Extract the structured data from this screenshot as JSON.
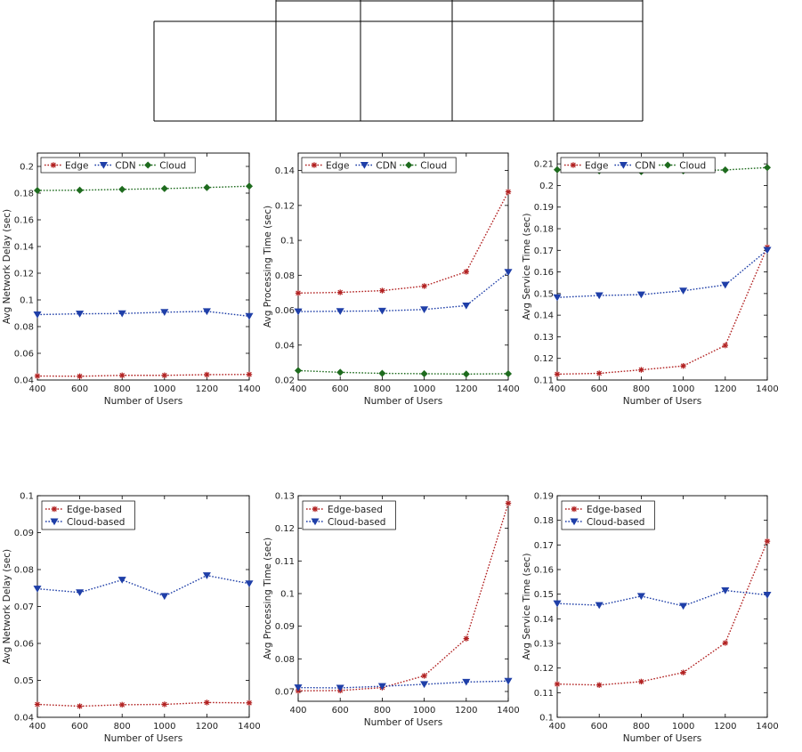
{
  "chart_data": [
    {
      "type": "line",
      "x": [
        400,
        600,
        800,
        1000,
        1200,
        1400
      ],
      "xlabel": "Number of Users",
      "ylabel": "Avg Network Delay (sec)",
      "xlim": [
        400,
        1400
      ],
      "ylim": [
        0.04,
        0.21
      ],
      "yticks": [
        0.04,
        0.06,
        0.08,
        0.1,
        0.12,
        0.14,
        0.16,
        0.18,
        0.2
      ],
      "ytick_labels": [
        "0.04",
        "0.06",
        "0.08",
        "0.1",
        "0.12",
        "0.14",
        "0.16",
        "0.18",
        "0.2"
      ],
      "xticks": [
        400,
        600,
        800,
        1000,
        1200,
        1400
      ],
      "grid": false,
      "legend": "top-left-horizontal",
      "series": [
        {
          "name": "Edge",
          "values": [
            0.043,
            0.0428,
            0.0435,
            0.0435,
            0.044,
            0.0442
          ],
          "color": "#b22222",
          "marker": "asterisk"
        },
        {
          "name": "CDN",
          "values": [
            0.089,
            0.0896,
            0.0898,
            0.0908,
            0.0914,
            0.0878
          ],
          "color": "#1f3fa8",
          "marker": "triangle-down"
        },
        {
          "name": "Cloud",
          "values": [
            0.182,
            0.1822,
            0.1828,
            0.1834,
            0.1842,
            0.1852
          ],
          "color": "#1e6b1e",
          "marker": "diamond"
        }
      ]
    },
    {
      "type": "line",
      "x": [
        400,
        600,
        800,
        1000,
        1200,
        1400
      ],
      "xlabel": "Number of Users",
      "ylabel": "Avg Processing Time (sec)",
      "xlim": [
        400,
        1400
      ],
      "ylim": [
        0.02,
        0.15
      ],
      "yticks": [
        0.02,
        0.04,
        0.06,
        0.08,
        0.1,
        0.12,
        0.14
      ],
      "ytick_labels": [
        "0.02",
        "0.04",
        "0.06",
        "0.08",
        "0.1",
        "0.12",
        "0.14"
      ],
      "xticks": [
        400,
        600,
        800,
        1000,
        1200,
        1400
      ],
      "grid": false,
      "legend": "top-left-horizontal",
      "series": [
        {
          "name": "Edge",
          "values": [
            0.0698,
            0.0702,
            0.0712,
            0.0738,
            0.082,
            0.1278
          ],
          "color": "#b22222",
          "marker": "asterisk"
        },
        {
          "name": "CDN",
          "values": [
            0.0592,
            0.0594,
            0.0596,
            0.0604,
            0.0626,
            0.0818
          ],
          "color": "#1f3fa8",
          "marker": "triangle-down"
        },
        {
          "name": "Cloud",
          "values": [
            0.0254,
            0.0244,
            0.0238,
            0.0236,
            0.0234,
            0.0236
          ],
          "color": "#1e6b1e",
          "marker": "diamond"
        }
      ]
    },
    {
      "type": "line",
      "x": [
        400,
        600,
        800,
        1000,
        1200,
        1400
      ],
      "xlabel": "Number of Users",
      "ylabel": "Avg Service Time (sec)",
      "xlim": [
        400,
        1400
      ],
      "ylim": [
        0.11,
        0.215
      ],
      "yticks": [
        0.11,
        0.12,
        0.13,
        0.14,
        0.15,
        0.16,
        0.17,
        0.18,
        0.19,
        0.2,
        0.21
      ],
      "ytick_labels": [
        "0.11",
        "0.12",
        "0.13",
        "0.14",
        "0.15",
        "0.16",
        "0.17",
        "0.18",
        "0.19",
        "0.2",
        "0.21"
      ],
      "xticks": [
        400,
        600,
        800,
        1000,
        1200,
        1400
      ],
      "grid": false,
      "legend": "top-left-horizontal",
      "series": [
        {
          "name": "Edge",
          "values": [
            0.1127,
            0.1131,
            0.1147,
            0.1165,
            0.126,
            0.1714
          ],
          "color": "#b22222",
          "marker": "asterisk"
        },
        {
          "name": "CDN",
          "values": [
            0.1482,
            0.1491,
            0.1495,
            0.1513,
            0.154,
            0.1701
          ],
          "color": "#1f3fa8",
          "marker": "triangle-down"
        },
        {
          "name": "Cloud",
          "values": [
            0.2073,
            0.2068,
            0.2064,
            0.2068,
            0.2072,
            0.2083
          ],
          "color": "#1e6b1e",
          "marker": "diamond"
        }
      ]
    },
    {
      "type": "line",
      "x": [
        400,
        600,
        800,
        1000,
        1200,
        1400
      ],
      "xlabel": "Number of Users",
      "ylabel": "Avg Network Delay (sec)",
      "xlim": [
        400,
        1400
      ],
      "ylim": [
        0.04,
        0.1
      ],
      "yticks": [
        0.04,
        0.05,
        0.06,
        0.07,
        0.08,
        0.09,
        0.1
      ],
      "ytick_labels": [
        "0.04",
        "0.05",
        "0.06",
        "0.07",
        "0.08",
        "0.09",
        "0.1"
      ],
      "xticks": [
        400,
        600,
        800,
        1000,
        1200,
        1400
      ],
      "grid": false,
      "legend": "top-left-vertical",
      "series": [
        {
          "name": "Edge-based",
          "values": [
            0.0435,
            0.043,
            0.0434,
            0.0435,
            0.044,
            0.0439
          ],
          "color": "#b22222",
          "marker": "asterisk"
        },
        {
          "name": "Cloud-based",
          "values": [
            0.0748,
            0.0738,
            0.0772,
            0.0728,
            0.0784,
            0.0762
          ],
          "color": "#1f3fa8",
          "marker": "triangle-down"
        }
      ]
    },
    {
      "type": "line",
      "x": [
        400,
        600,
        800,
        1000,
        1200,
        1400
      ],
      "xlabel": "Number of Users",
      "ylabel": "Avg Processing Time (sec)",
      "xlim": [
        400,
        1400
      ],
      "ylim": [
        0.067,
        0.13
      ],
      "yticks": [
        0.07,
        0.08,
        0.09,
        0.1,
        0.11,
        0.12,
        0.13
      ],
      "ytick_labels": [
        "0.07",
        "0.08",
        "0.09",
        "0.1",
        "0.11",
        "0.12",
        "0.13"
      ],
      "xticks": [
        400,
        600,
        800,
        1000,
        1200,
        1400
      ],
      "grid": false,
      "legend": "top-left-vertical",
      "series": [
        {
          "name": "Edge-based",
          "values": [
            0.0702,
            0.0703,
            0.0712,
            0.0748,
            0.0862,
            0.1277
          ],
          "color": "#b22222",
          "marker": "asterisk"
        },
        {
          "name": "Cloud-based",
          "values": [
            0.0712,
            0.0711,
            0.0716,
            0.0722,
            0.0729,
            0.0732
          ],
          "color": "#1f3fa8",
          "marker": "triangle-down"
        }
      ]
    },
    {
      "type": "line",
      "x": [
        400,
        600,
        800,
        1000,
        1200,
        1400
      ],
      "xlabel": "Number of Users",
      "ylabel": "Avg Service Time (sec)",
      "xlim": [
        400,
        1400
      ],
      "ylim": [
        0.1,
        0.19
      ],
      "yticks": [
        0.1,
        0.11,
        0.12,
        0.13,
        0.14,
        0.15,
        0.16,
        0.17,
        0.18,
        0.19
      ],
      "ytick_labels": [
        "0.1",
        "0.11",
        "0.12",
        "0.13",
        "0.14",
        "0.15",
        "0.16",
        "0.17",
        "0.18",
        "0.19"
      ],
      "xticks": [
        400,
        600,
        800,
        1000,
        1200,
        1400
      ],
      "grid": false,
      "legend": "top-left-vertical",
      "series": [
        {
          "name": "Edge-based",
          "values": [
            0.1135,
            0.1131,
            0.1145,
            0.1182,
            0.1302,
            0.1715
          ],
          "color": "#b22222",
          "marker": "asterisk"
        },
        {
          "name": "Cloud-based",
          "values": [
            0.1462,
            0.1455,
            0.1492,
            0.1452,
            0.1515,
            0.1497
          ],
          "color": "#1f3fa8",
          "marker": "triangle-down"
        }
      ]
    }
  ]
}
